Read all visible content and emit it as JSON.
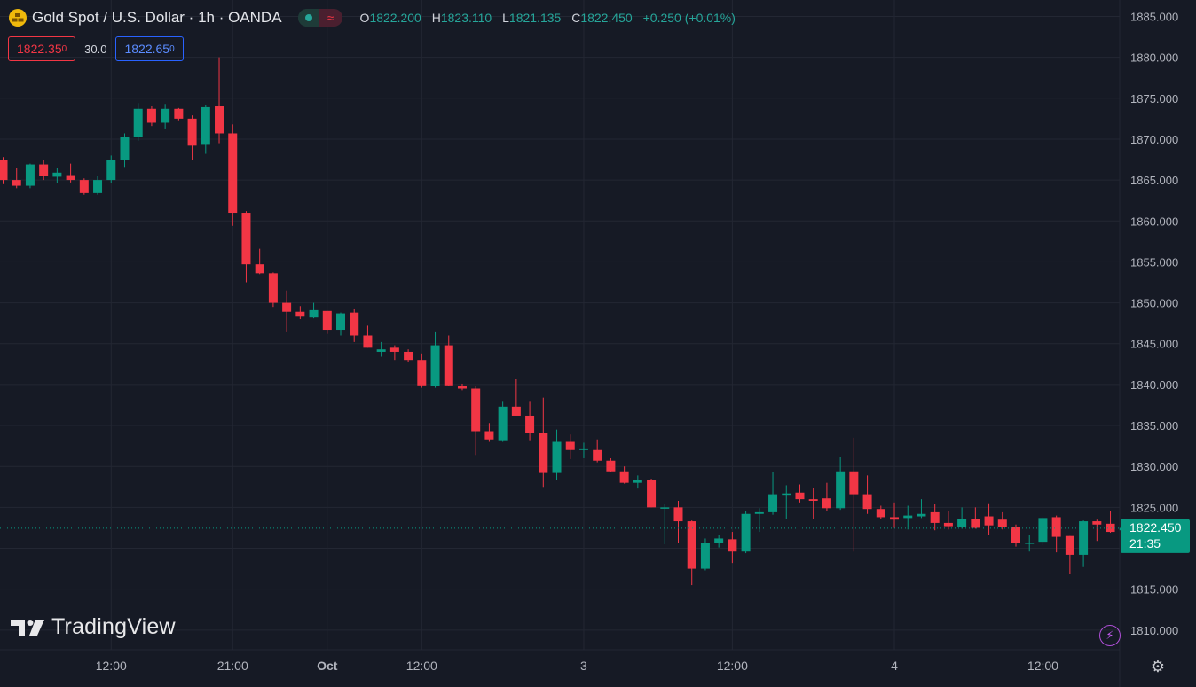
{
  "header": {
    "title": "Gold Spot / U.S. Dollar · 1h · OANDA",
    "ohlc": [
      {
        "key": "O",
        "value": "1822.200"
      },
      {
        "key": "H",
        "value": "1823.110"
      },
      {
        "key": "L",
        "value": "1821.135"
      },
      {
        "key": "C",
        "value": "1822.450"
      }
    ],
    "change": "+0.250 (+0.01%)"
  },
  "quotes": {
    "sell_main": "1822.35",
    "sell_sup": "0",
    "spread": "30.0",
    "buy_main": "1822.65",
    "buy_sup": "0"
  },
  "price_label": {
    "price": "1822.450",
    "countdown": "21:35"
  },
  "logo_text": "TradingView",
  "colors": {
    "up": "#089981",
    "down": "#f23645",
    "grid": "#232733",
    "background": "#161a25",
    "axis_text": "#b2b5be"
  },
  "icons": {
    "symbol": "gold-bars-icon",
    "replay": "lightning-icon",
    "settings": "gear-icon",
    "status": "market-open-dot-icon",
    "delay": "wave-icon"
  },
  "chart_data": {
    "type": "candlestick",
    "interval": "1h",
    "ylim": [
      1807.6,
      1887.0
    ],
    "y_ticks": [
      "1885.000",
      "1880.000",
      "1875.000",
      "1870.000",
      "1865.000",
      "1860.000",
      "1855.000",
      "1850.000",
      "1845.000",
      "1840.000",
      "1835.000",
      "1830.000",
      "1825.000",
      "1820.000",
      "1815.000",
      "1810.000"
    ],
    "x_ticks": [
      {
        "label": "12:00",
        "index": 8
      },
      {
        "label": "21:00",
        "index": 17
      },
      {
        "label": "Oct",
        "index": 24,
        "bold": true
      },
      {
        "label": "12:00",
        "index": 31
      },
      {
        "label": "3",
        "index": 43
      },
      {
        "label": "12:00",
        "index": 54
      },
      {
        "label": "4",
        "index": 66
      },
      {
        "label": "12:00",
        "index": 77
      }
    ],
    "last_price": 1822.45,
    "candles": [
      [
        1867.5,
        1867.8,
        1864.5,
        1865.0
      ],
      [
        1865.0,
        1866.5,
        1864.0,
        1864.3
      ],
      [
        1864.3,
        1867.0,
        1864.0,
        1866.9
      ],
      [
        1866.9,
        1867.5,
        1865.0,
        1865.5
      ],
      [
        1865.4,
        1866.5,
        1864.6,
        1865.9
      ],
      [
        1865.6,
        1867.0,
        1864.7,
        1865.0
      ],
      [
        1865.0,
        1865.2,
        1863.2,
        1863.4
      ],
      [
        1863.4,
        1865.5,
        1863.2,
        1865.0
      ],
      [
        1865.0,
        1868.0,
        1864.6,
        1867.5
      ],
      [
        1867.5,
        1870.7,
        1866.6,
        1870.3
      ],
      [
        1870.3,
        1874.4,
        1869.8,
        1873.7
      ],
      [
        1873.7,
        1874.0,
        1871.6,
        1872.0
      ],
      [
        1872.0,
        1874.3,
        1871.3,
        1873.7
      ],
      [
        1873.7,
        1873.8,
        1872.3,
        1872.5
      ],
      [
        1872.5,
        1872.9,
        1867.4,
        1869.2
      ],
      [
        1869.3,
        1874.2,
        1868.2,
        1873.9
      ],
      [
        1874.0,
        1880.0,
        1869.5,
        1870.7
      ],
      [
        1870.7,
        1871.8,
        1859.4,
        1861.0
      ],
      [
        1861.0,
        1861.2,
        1852.5,
        1854.7
      ],
      [
        1854.7,
        1856.6,
        1853.5,
        1853.6
      ],
      [
        1853.6,
        1853.7,
        1849.5,
        1850.0
      ],
      [
        1850.0,
        1851.5,
        1846.5,
        1848.9
      ],
      [
        1848.9,
        1849.6,
        1848.0,
        1848.3
      ],
      [
        1848.2,
        1850.0,
        1848.1,
        1849.1
      ],
      [
        1849.0,
        1849.0,
        1846.2,
        1846.7
      ],
      [
        1846.7,
        1848.8,
        1846.0,
        1848.7
      ],
      [
        1848.8,
        1849.2,
        1845.2,
        1846.0
      ],
      [
        1846.0,
        1847.2,
        1844.5,
        1844.5
      ],
      [
        1844.0,
        1845.2,
        1843.4,
        1844.3
      ],
      [
        1844.5,
        1844.8,
        1843.0,
        1844.0
      ],
      [
        1844.0,
        1844.3,
        1842.8,
        1843.0
      ],
      [
        1843.0,
        1843.8,
        1839.6,
        1839.9
      ],
      [
        1839.8,
        1846.5,
        1839.6,
        1844.8
      ],
      [
        1844.8,
        1846.0,
        1839.8,
        1839.9
      ],
      [
        1839.8,
        1840.1,
        1839.3,
        1839.5
      ],
      [
        1839.5,
        1839.8,
        1831.4,
        1834.3
      ],
      [
        1834.3,
        1835.3,
        1833.0,
        1833.3
      ],
      [
        1833.2,
        1838.0,
        1833.0,
        1837.3
      ],
      [
        1837.3,
        1840.7,
        1836.2,
        1836.2
      ],
      [
        1836.2,
        1838.0,
        1833.2,
        1834.1
      ],
      [
        1834.1,
        1838.4,
        1827.5,
        1829.2
      ],
      [
        1829.2,
        1834.5,
        1828.3,
        1833.0
      ],
      [
        1833.0,
        1833.9,
        1830.9,
        1832.0
      ],
      [
        1832.0,
        1832.9,
        1831.0,
        1832.2
      ],
      [
        1832.0,
        1833.3,
        1830.5,
        1830.7
      ],
      [
        1830.7,
        1831.0,
        1829.3,
        1829.4
      ],
      [
        1829.4,
        1830.0,
        1827.9,
        1828.0
      ],
      [
        1828.0,
        1828.9,
        1827.3,
        1828.3
      ],
      [
        1828.3,
        1828.5,
        1825.0,
        1825.0
      ],
      [
        1825.0,
        1825.4,
        1820.5,
        1825.0
      ],
      [
        1825.0,
        1825.8,
        1820.7,
        1823.3
      ],
      [
        1823.3,
        1823.4,
        1815.5,
        1817.5
      ],
      [
        1817.5,
        1821.2,
        1817.3,
        1820.6
      ],
      [
        1820.6,
        1821.6,
        1820.1,
        1821.2
      ],
      [
        1821.1,
        1822.0,
        1818.2,
        1819.6
      ],
      [
        1819.6,
        1824.6,
        1819.4,
        1824.2
      ],
      [
        1824.2,
        1824.9,
        1822.0,
        1824.4
      ],
      [
        1824.4,
        1829.3,
        1824.1,
        1826.6
      ],
      [
        1826.6,
        1827.7,
        1823.6,
        1826.7
      ],
      [
        1826.8,
        1827.8,
        1825.6,
        1826.0
      ],
      [
        1826.0,
        1827.4,
        1823.6,
        1825.8
      ],
      [
        1826.1,
        1828.0,
        1824.6,
        1824.9
      ],
      [
        1824.9,
        1831.2,
        1824.7,
        1829.4
      ],
      [
        1829.4,
        1833.5,
        1819.6,
        1826.6
      ],
      [
        1826.6,
        1828.9,
        1824.2,
        1824.8
      ],
      [
        1824.8,
        1825.2,
        1823.6,
        1823.8
      ],
      [
        1823.8,
        1825.6,
        1822.5,
        1823.5
      ],
      [
        1823.7,
        1825.2,
        1822.3,
        1824.0
      ],
      [
        1823.9,
        1826.0,
        1823.7,
        1824.2
      ],
      [
        1824.4,
        1825.4,
        1822.2,
        1823.1
      ],
      [
        1823.1,
        1824.5,
        1822.3,
        1822.7
      ],
      [
        1822.6,
        1825.0,
        1822.4,
        1823.6
      ],
      [
        1823.6,
        1825.0,
        1822.4,
        1822.5
      ],
      [
        1823.9,
        1825.5,
        1821.6,
        1822.8
      ],
      [
        1823.5,
        1824.4,
        1822.3,
        1822.6
      ],
      [
        1822.6,
        1822.9,
        1820.2,
        1820.7
      ],
      [
        1820.7,
        1821.6,
        1819.6,
        1820.7
      ],
      [
        1820.8,
        1823.8,
        1820.4,
        1823.7
      ],
      [
        1823.8,
        1824.0,
        1819.5,
        1821.4
      ],
      [
        1821.5,
        1821.5,
        1816.9,
        1819.2
      ],
      [
        1819.2,
        1823.4,
        1817.7,
        1823.3
      ],
      [
        1823.3,
        1823.5,
        1820.9,
        1822.9
      ],
      [
        1823.0,
        1824.6,
        1821.9,
        1822.0
      ],
      [
        1822.2,
        1823.1,
        1821.1,
        1822.5
      ]
    ]
  }
}
